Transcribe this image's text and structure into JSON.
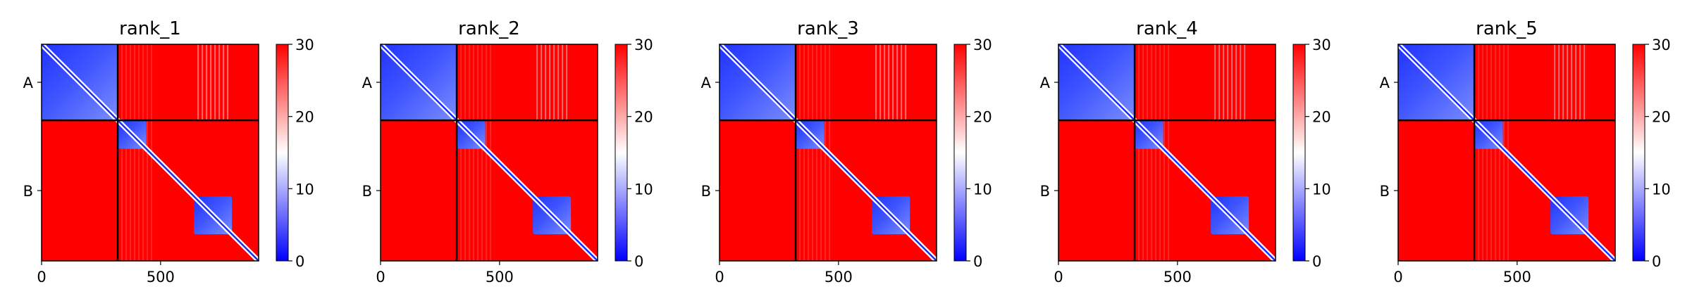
{
  "chart_data": [
    {
      "type": "heatmap",
      "title": "rank_1",
      "chains": [
        {
          "label": "A",
          "start": 0,
          "end": 320
        },
        {
          "label": "B",
          "start": 320,
          "end": 912
        }
      ],
      "x_range": [
        0,
        912
      ],
      "xticks": [
        0,
        500
      ],
      "colorbar": {
        "min": 0,
        "max": 30,
        "ticks": [
          0,
          10,
          20,
          30
        ],
        "colors": [
          "#0000ff",
          "#ffffff",
          "#ff0000"
        ]
      },
      "blue_blocks": [
        [
          0,
          320,
          0,
          320
        ],
        [
          320,
          440,
          320,
          440
        ],
        [
          640,
          800,
          640,
          800
        ]
      ]
    },
    {
      "type": "heatmap",
      "title": "rank_2",
      "chains": [
        {
          "label": "A",
          "start": 0,
          "end": 320
        },
        {
          "label": "B",
          "start": 320,
          "end": 912
        }
      ],
      "x_range": [
        0,
        912
      ],
      "xticks": [
        0,
        500
      ],
      "colorbar": {
        "min": 0,
        "max": 30,
        "ticks": [
          0,
          10,
          20,
          30
        ],
        "colors": [
          "#0000ff",
          "#ffffff",
          "#ff0000"
        ]
      },
      "blue_blocks": [
        [
          0,
          320,
          0,
          320
        ],
        [
          320,
          440,
          320,
          440
        ],
        [
          640,
          800,
          640,
          800
        ]
      ]
    },
    {
      "type": "heatmap",
      "title": "rank_3",
      "chains": [
        {
          "label": "A",
          "start": 0,
          "end": 320
        },
        {
          "label": "B",
          "start": 320,
          "end": 912
        }
      ],
      "x_range": [
        0,
        912
      ],
      "xticks": [
        0,
        500
      ],
      "colorbar": {
        "min": 0,
        "max": 30,
        "ticks": [
          0,
          10,
          20,
          30
        ],
        "colors": [
          "#0000ff",
          "#ffffff",
          "#ff0000"
        ]
      },
      "blue_blocks": [
        [
          0,
          320,
          0,
          320
        ],
        [
          320,
          440,
          320,
          440
        ],
        [
          640,
          800,
          640,
          800
        ]
      ]
    },
    {
      "type": "heatmap",
      "title": "rank_4",
      "chains": [
        {
          "label": "A",
          "start": 0,
          "end": 320
        },
        {
          "label": "B",
          "start": 320,
          "end": 912
        }
      ],
      "x_range": [
        0,
        912
      ],
      "xticks": [
        0,
        500
      ],
      "colorbar": {
        "min": 0,
        "max": 30,
        "ticks": [
          0,
          10,
          20,
          30
        ],
        "colors": [
          "#0000ff",
          "#ffffff",
          "#ff0000"
        ]
      },
      "blue_blocks": [
        [
          0,
          320,
          0,
          320
        ],
        [
          320,
          440,
          320,
          440
        ],
        [
          640,
          800,
          640,
          800
        ]
      ]
    },
    {
      "type": "heatmap",
      "title": "rank_5",
      "chains": [
        {
          "label": "A",
          "start": 0,
          "end": 320
        },
        {
          "label": "B",
          "start": 320,
          "end": 912
        }
      ],
      "x_range": [
        0,
        912
      ],
      "xticks": [
        0,
        500
      ],
      "colorbar": {
        "min": 0,
        "max": 30,
        "ticks": [
          0,
          10,
          20,
          30
        ],
        "colors": [
          "#0000ff",
          "#ffffff",
          "#ff0000"
        ]
      },
      "blue_blocks": [
        [
          0,
          320,
          0,
          320
        ],
        [
          320,
          440,
          320,
          440
        ],
        [
          640,
          800,
          640,
          800
        ]
      ]
    }
  ]
}
